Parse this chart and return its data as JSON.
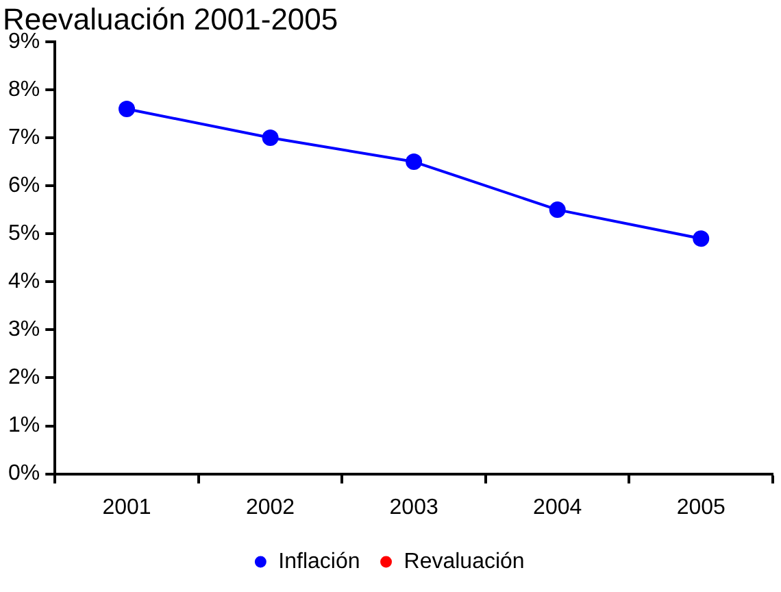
{
  "chart_data": {
    "type": "line",
    "title": "Reevaluación 2001-2005",
    "categories": [
      "2001",
      "2002",
      "2003",
      "2004",
      "2005"
    ],
    "series": [
      {
        "name": "Inflación",
        "color": "#0000ff",
        "values": [
          7.6,
          7.0,
          6.5,
          5.5,
          4.9
        ]
      },
      {
        "name": "Revaluación",
        "color": "#ff0000",
        "values": [
          null,
          null,
          null,
          null,
          null
        ]
      }
    ],
    "ylim": [
      0,
      9
    ],
    "yticks": [
      {
        "value": 0,
        "label": "0%"
      },
      {
        "value": 1,
        "label": "1%"
      },
      {
        "value": 2,
        "label": "2%"
      },
      {
        "value": 3,
        "label": "3%"
      },
      {
        "value": 4,
        "label": "4%"
      },
      {
        "value": 5,
        "label": "5%"
      },
      {
        "value": 6,
        "label": "6%"
      },
      {
        "value": 7,
        "label": "7%"
      },
      {
        "value": 8,
        "label": "8%"
      },
      {
        "value": 9,
        "label": "9%"
      }
    ],
    "grid": false,
    "legend": "bottom",
    "marker": "circle",
    "line_style": "solid"
  }
}
